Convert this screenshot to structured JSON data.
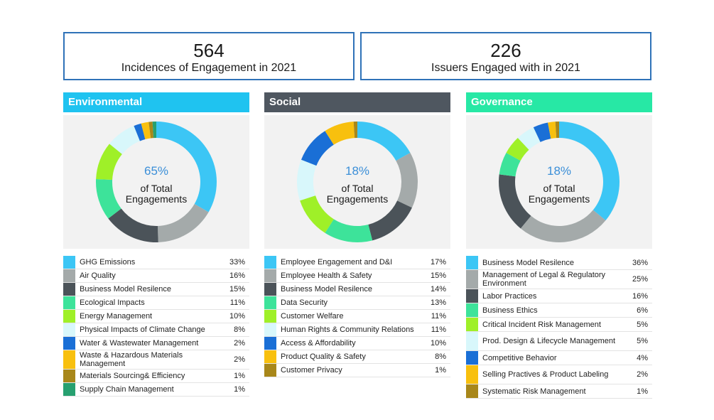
{
  "stats": [
    {
      "value": "564",
      "label": "Incidences of Engagement in 2021"
    },
    {
      "value": "226",
      "label": "Issuers Engaged with in 2021"
    }
  ],
  "center_caption": {
    "line1": "of Total",
    "line2": "Engagements"
  },
  "colors": {
    "accent_blue": "#2f72b8",
    "percent_text": "#3b8fd8",
    "environmental_header": "#1fc3f0",
    "social_header": "#4f5760",
    "governance_header": "#27e8a5"
  },
  "chart_data": [
    {
      "type": "donut",
      "title": "Environmental",
      "center_value": "65%",
      "categories": [
        "GHG Emissions",
        "Air Quality",
        "Business Model Resilence",
        "Ecological Impacts",
        "Energy Management",
        "Physical Impacts of Climate Change",
        "Water & Wastewater Management",
        "Waste & Hazardous Materials Management",
        "Materials Sourcing& Efficiency",
        "Supply Chain Management"
      ],
      "values": [
        33,
        16,
        15,
        11,
        10,
        8,
        2,
        2,
        1,
        1
      ],
      "labels": [
        "33%",
        "16%",
        "15%",
        "11%",
        "10%",
        "8%",
        "2%",
        "2%",
        "1%",
        "1%"
      ],
      "colors": [
        "#3cc6f5",
        "#a4aaaa",
        "#4b5359",
        "#3de39a",
        "#9ff028",
        "#d8f7fb",
        "#1a6fd6",
        "#f8c00e",
        "#a8871a",
        "#27a070"
      ]
    },
    {
      "type": "donut",
      "title": "Social",
      "center_value": "18%",
      "categories": [
        "Employee Engagement and D&I",
        "Employee Health & Safety",
        "Business Model Resilence",
        "Data Security",
        "Customer Welfare",
        "Human Rights & Community Relations",
        "Access & Affordability",
        "Product Quality & Safety",
        "Customer Privacy"
      ],
      "values": [
        17,
        15,
        14,
        13,
        11,
        11,
        10,
        8,
        1
      ],
      "labels": [
        "17%",
        "15%",
        "14%",
        "13%",
        "11%",
        "11%",
        "10%",
        "8%",
        "1%"
      ],
      "colors": [
        "#3cc6f5",
        "#a4aaaa",
        "#4b5359",
        "#3de39a",
        "#9ff028",
        "#d8f7fb",
        "#1a6fd6",
        "#f8c00e",
        "#a8871a"
      ]
    },
    {
      "type": "donut",
      "title": "Governance",
      "center_value": "18%",
      "categories": [
        "Business Model Resilence",
        "Management of Legal & Regulatory Environment",
        "Labor Practices",
        "Business Ethics",
        "Critical Incident Risk Management",
        "Prod. Design & Lifecycle Management",
        "Competitive Behavior",
        "Selling Practives & Product Labeling",
        "Systematic Risk Management"
      ],
      "values": [
        36,
        25,
        16,
        6,
        5,
        5,
        4,
        2,
        1
      ],
      "labels": [
        "36%",
        "25%",
        "16%",
        "6%",
        "5%",
        "5%",
        "4%",
        "2%",
        "1%"
      ],
      "colors": [
        "#3cc6f5",
        "#a4aaaa",
        "#4b5359",
        "#3de39a",
        "#9ff028",
        "#d8f7fb",
        "#1a6fd6",
        "#f8c00e",
        "#a8871a"
      ]
    }
  ]
}
